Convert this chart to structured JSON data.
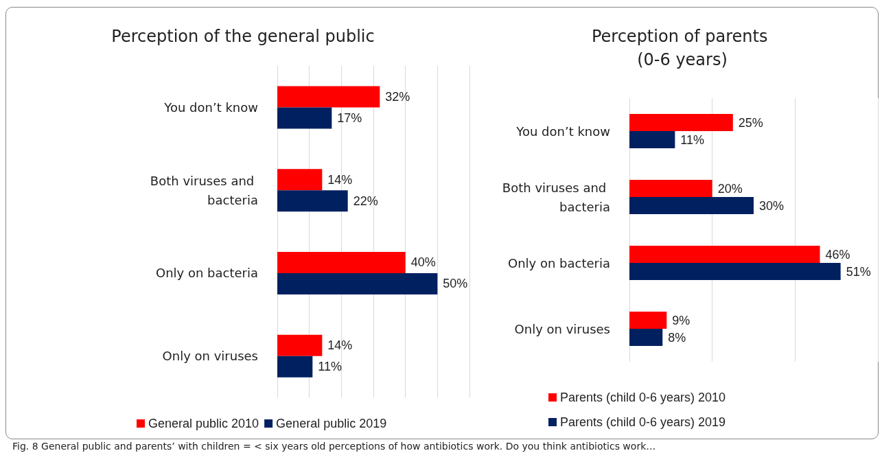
{
  "chart_data": [
    {
      "type": "bar",
      "orientation": "horizontal",
      "title": "Perception of the general public",
      "categories": [
        "You don’t know",
        "Both viruses and bacteria",
        "Only on bacteria",
        "Only on viruses"
      ],
      "series": [
        {
          "name": "General public 2010",
          "color": "#ff0000",
          "values": [
            32,
            14,
            40,
            14
          ],
          "value_labels": [
            "32%",
            "14%",
            "40%",
            "14%"
          ]
        },
        {
          "name": "General public 2019",
          "color": "#002060",
          "values": [
            17,
            22,
            50,
            11
          ],
          "value_labels": [
            "17%",
            "22%",
            "50%",
            "11%"
          ]
        }
      ],
      "xlim": [
        0,
        60
      ],
      "xticks": [
        {
          "value": 0,
          "label": null
        },
        {
          "value": 10,
          "label": null
        },
        {
          "value": 20,
          "label": null
        },
        {
          "value": 30,
          "label": null
        },
        {
          "value": 40,
          "label": null
        },
        {
          "value": 50,
          "label": null
        },
        {
          "value": 60,
          "label": null
        }
      ],
      "tick_labels": "y",
      "grid": "x",
      "legend": "bottom",
      "annotations": [
        "Fig. 8 General public and parents’ with children = < six years old perceptions of how antibiotics work. Do you think antibiotics work…"
      ]
    },
    {
      "type": "bar",
      "orientation": "horizontal",
      "title": "Perception of parents (0-6 years)",
      "categories": [
        "You don’t know",
        "Both viruses and bacteria",
        "Only on bacteria",
        "Only on viruses"
      ],
      "series": [
        {
          "name": "Parents (child 0-6 years) 2010",
          "color": "#ff0000",
          "values": [
            25,
            20,
            46,
            9
          ],
          "value_labels": [
            "25%",
            "20%",
            "46%",
            "9%"
          ]
        },
        {
          "name": "Parents (child 0-6 years) 2019",
          "color": "#002060",
          "values": [
            11,
            30,
            51,
            8
          ],
          "value_labels": [
            "11%",
            "30%",
            "51%",
            "8%"
          ]
        }
      ],
      "xlim": [
        0,
        60
      ],
      "xticks": [
        {
          "value": 0,
          "label": null
        },
        {
          "value": 20,
          "label": null
        },
        {
          "value": 40,
          "label": null
        },
        {
          "value": 60,
          "label": null
        }
      ],
      "tick_labels": "y",
      "grid": "x",
      "legend": "bottom"
    }
  ]
}
